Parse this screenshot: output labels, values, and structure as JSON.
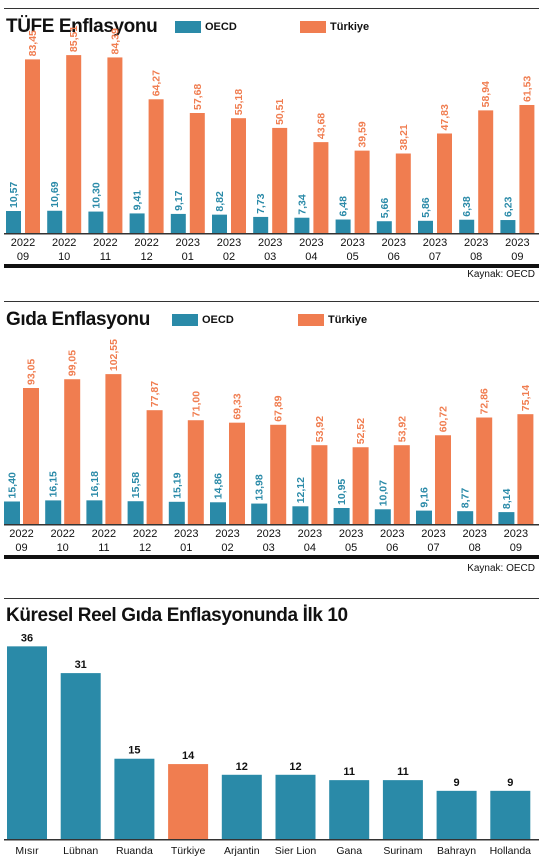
{
  "colors": {
    "oecd": "#2a8aa8",
    "turkiye": "#f07d50",
    "axis": "#111111"
  },
  "chart_data": [
    {
      "type": "bar",
      "title": "TÜFE Enflasyonu",
      "legend_position": "top",
      "source": "Kaynak: OECD",
      "categories": [
        [
          "2022",
          "09"
        ],
        [
          "2022",
          "10"
        ],
        [
          "2022",
          "11"
        ],
        [
          "2022",
          "12"
        ],
        [
          "2023",
          "01"
        ],
        [
          "2023",
          "02"
        ],
        [
          "2023",
          "03"
        ],
        [
          "2023",
          "04"
        ],
        [
          "2023",
          "05"
        ],
        [
          "2023",
          "06"
        ],
        [
          "2023",
          "07"
        ],
        [
          "2023",
          "08"
        ],
        [
          "2023",
          "09"
        ]
      ],
      "series": [
        {
          "name": "OECD",
          "values": [
            10.57,
            10.69,
            10.3,
            9.41,
            9.17,
            8.82,
            7.73,
            7.34,
            6.48,
            5.66,
            5.86,
            6.38,
            6.23
          ],
          "labels": [
            "10,57",
            "10,69",
            "10,30",
            "9,41",
            "9,17",
            "8,82",
            "7,73",
            "7,34",
            "6,48",
            "5,66",
            "5,86",
            "6,38",
            "6,23"
          ]
        },
        {
          "name": "Türkiye",
          "values": [
            83.45,
            85.51,
            84.39,
            64.27,
            57.68,
            55.18,
            50.51,
            43.68,
            39.59,
            38.21,
            47.83,
            58.94,
            61.53
          ],
          "labels": [
            "83,45",
            "85,51",
            "84,39",
            "64,27",
            "57,68",
            "55,18",
            "50,51",
            "43,68",
            "39,59",
            "38,21",
            "47,83",
            "58,94",
            "61,53"
          ]
        }
      ],
      "ylim": [
        0,
        87
      ]
    },
    {
      "type": "bar",
      "title": "Gıda Enflasyonu",
      "legend_position": "top",
      "source": "Kaynak: OECD",
      "categories": [
        [
          "2022",
          "09"
        ],
        [
          "2022",
          "10"
        ],
        [
          "2022",
          "11"
        ],
        [
          "2022",
          "12"
        ],
        [
          "2023",
          "01"
        ],
        [
          "2023",
          "02"
        ],
        [
          "2023",
          "03"
        ],
        [
          "2023",
          "04"
        ],
        [
          "2023",
          "05"
        ],
        [
          "2023",
          "06"
        ],
        [
          "2023",
          "07"
        ],
        [
          "2023",
          "08"
        ],
        [
          "2023",
          "09"
        ]
      ],
      "series": [
        {
          "name": "OECD",
          "values": [
            15.4,
            16.15,
            16.18,
            15.58,
            15.19,
            14.86,
            13.98,
            12.12,
            10.95,
            10.07,
            9.16,
            8.77,
            8.14
          ],
          "labels": [
            "15,40",
            "16,15",
            "16,18",
            "15,58",
            "15,19",
            "14,86",
            "13,98",
            "12,12",
            "10,95",
            "10,07",
            "9,16",
            "8,77",
            "8,14"
          ]
        },
        {
          "name": "Türkiye",
          "values": [
            93.05,
            99.05,
            102.55,
            77.87,
            71.0,
            69.33,
            67.89,
            53.92,
            52.52,
            53.92,
            60.72,
            72.86,
            75.14
          ],
          "labels": [
            "93,05",
            "99,05",
            "102,55",
            "77,87",
            "71,00",
            "69,33",
            "67,89",
            "53,92",
            "52,52",
            "53,92",
            "60,72",
            "72,86",
            "75,14"
          ]
        }
      ],
      "ylim": [
        0,
        104
      ]
    },
    {
      "type": "bar",
      "title": "Küresel Reel Gıda Enflasyonunda İlk 10",
      "categories": [
        "Mısır",
        "Lübnan",
        "Ruanda",
        "Türkiye",
        "Arjantin",
        "Sier Lion",
        "Gana",
        "Surinam",
        "Bahrayn",
        "Hollanda"
      ],
      "values": [
        36,
        31,
        15,
        14,
        12,
        12,
        11,
        11,
        9,
        9
      ],
      "highlight": "Türkiye",
      "ylim": [
        0,
        37
      ]
    }
  ]
}
